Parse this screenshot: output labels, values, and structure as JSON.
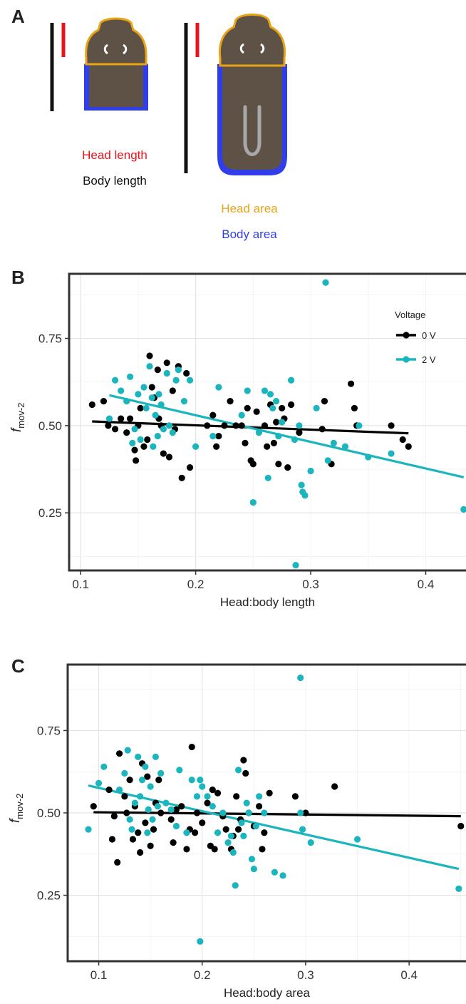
{
  "panels": {
    "a": {
      "letter": "A",
      "head_length_label": "Head length",
      "body_length_label": "Body length",
      "head_area_label": "Head area",
      "body_area_label": "Body area",
      "colors": {
        "head_length": "#e8141b",
        "body_length": "#111111",
        "head_area": "#e8a317",
        "body_area": "#2f3ee8",
        "body_fill": "#5e5146"
      }
    },
    "b": {
      "letter": "B"
    },
    "c": {
      "letter": "C"
    }
  },
  "chart_data": [
    {
      "type": "scatter",
      "panel": "B",
      "xlabel": "Head:body length",
      "ylabel_main": "f",
      "ylabel_sub": "mov-2",
      "xlim": [
        0.09,
        0.435
      ],
      "ylim": [
        0.085,
        0.935
      ],
      "xticks": [
        0.1,
        0.2,
        0.3,
        0.4
      ],
      "xtick_labels": [
        "0.1",
        "0.2",
        "0.3",
        "0.4"
      ],
      "yticks": [
        0.25,
        0.5,
        0.75
      ],
      "ytick_labels": [
        "0.25",
        "0.50",
        "0.75"
      ],
      "grid": true,
      "legend": {
        "title": "Voltage",
        "position": "top-right"
      },
      "series": [
        {
          "name": "0 V",
          "color": "#000000",
          "points": [
            [
              0.11,
              0.56
            ],
            [
              0.12,
              0.57
            ],
            [
              0.124,
              0.5
            ],
            [
              0.13,
              0.49
            ],
            [
              0.135,
              0.52
            ],
            [
              0.14,
              0.48
            ],
            [
              0.143,
              0.52
            ],
            [
              0.147,
              0.43
            ],
            [
              0.148,
              0.4
            ],
            [
              0.15,
              0.5
            ],
            [
              0.152,
              0.55
            ],
            [
              0.155,
              0.44
            ],
            [
              0.158,
              0.46
            ],
            [
              0.16,
              0.7
            ],
            [
              0.162,
              0.61
            ],
            [
              0.164,
              0.58
            ],
            [
              0.167,
              0.66
            ],
            [
              0.168,
              0.52
            ],
            [
              0.17,
              0.5
            ],
            [
              0.172,
              0.42
            ],
            [
              0.175,
              0.68
            ],
            [
              0.177,
              0.41
            ],
            [
              0.18,
              0.6
            ],
            [
              0.182,
              0.49
            ],
            [
              0.185,
              0.67
            ],
            [
              0.188,
              0.35
            ],
            [
              0.192,
              0.65
            ],
            [
              0.195,
              0.38
            ],
            [
              0.21,
              0.5
            ],
            [
              0.215,
              0.53
            ],
            [
              0.218,
              0.44
            ],
            [
              0.22,
              0.47
            ],
            [
              0.225,
              0.5
            ],
            [
              0.23,
              0.57
            ],
            [
              0.235,
              0.5
            ],
            [
              0.24,
              0.5
            ],
            [
              0.243,
              0.45
            ],
            [
              0.245,
              0.55
            ],
            [
              0.248,
              0.4
            ],
            [
              0.25,
              0.39
            ],
            [
              0.253,
              0.54
            ],
            [
              0.26,
              0.5
            ],
            [
              0.262,
              0.44
            ],
            [
              0.265,
              0.56
            ],
            [
              0.268,
              0.45
            ],
            [
              0.27,
              0.51
            ],
            [
              0.272,
              0.39
            ],
            [
              0.275,
              0.55
            ],
            [
              0.277,
              0.52
            ],
            [
              0.28,
              0.38
            ],
            [
              0.283,
              0.56
            ],
            [
              0.29,
              0.48
            ],
            [
              0.31,
              0.49
            ],
            [
              0.312,
              0.57
            ],
            [
              0.318,
              0.39
            ],
            [
              0.335,
              0.62
            ],
            [
              0.338,
              0.55
            ],
            [
              0.34,
              0.5
            ],
            [
              0.37,
              0.5
            ],
            [
              0.38,
              0.46
            ],
            [
              0.385,
              0.44
            ]
          ]
        },
        {
          "name": "2 V",
          "color": "#1ab5bd",
          "points": [
            [
              0.125,
              0.52
            ],
            [
              0.13,
              0.63
            ],
            [
              0.135,
              0.6
            ],
            [
              0.14,
              0.57
            ],
            [
              0.143,
              0.64
            ],
            [
              0.145,
              0.45
            ],
            [
              0.147,
              0.49
            ],
            [
              0.15,
              0.59
            ],
            [
              0.152,
              0.46
            ],
            [
              0.155,
              0.61
            ],
            [
              0.157,
              0.55
            ],
            [
              0.16,
              0.67
            ],
            [
              0.162,
              0.58
            ],
            [
              0.163,
              0.44
            ],
            [
              0.165,
              0.53
            ],
            [
              0.167,
              0.47
            ],
            [
              0.168,
              0.59
            ],
            [
              0.17,
              0.56
            ],
            [
              0.172,
              0.49
            ],
            [
              0.175,
              0.65
            ],
            [
              0.177,
              0.5
            ],
            [
              0.18,
              0.48
            ],
            [
              0.183,
              0.63
            ],
            [
              0.185,
              0.66
            ],
            [
              0.19,
              0.57
            ],
            [
              0.195,
              0.63
            ],
            [
              0.2,
              0.44
            ],
            [
              0.215,
              0.47
            ],
            [
              0.22,
              0.61
            ],
            [
              0.24,
              0.53
            ],
            [
              0.245,
              0.6
            ],
            [
              0.25,
              0.28
            ],
            [
              0.255,
              0.48
            ],
            [
              0.26,
              0.6
            ],
            [
              0.263,
              0.35
            ],
            [
              0.265,
              0.59
            ],
            [
              0.267,
              0.55
            ],
            [
              0.27,
              0.57
            ],
            [
              0.272,
              0.47
            ],
            [
              0.275,
              0.51
            ],
            [
              0.283,
              0.63
            ],
            [
              0.286,
              0.46
            ],
            [
              0.29,
              0.5
            ],
            [
              0.292,
              0.33
            ],
            [
              0.293,
              0.31
            ],
            [
              0.295,
              0.3
            ],
            [
              0.3,
              0.37
            ],
            [
              0.305,
              0.55
            ],
            [
              0.313,
              0.91
            ],
            [
              0.315,
              0.4
            ],
            [
              0.32,
              0.45
            ],
            [
              0.33,
              0.44
            ],
            [
              0.342,
              0.5
            ],
            [
              0.35,
              0.41
            ],
            [
              0.37,
              0.42
            ],
            [
              0.433,
              0.26
            ],
            [
              0.287,
              0.1
            ]
          ]
        }
      ],
      "fits": [
        {
          "series": "0 V",
          "x": [
            0.11,
            0.385
          ],
          "y": [
            0.512,
            0.478
          ]
        },
        {
          "series": "2 V",
          "x": [
            0.125,
            0.433
          ],
          "y": [
            0.587,
            0.352
          ]
        }
      ]
    },
    {
      "type": "scatter",
      "panel": "C",
      "xlabel": "Head:body area",
      "ylabel_main": "f",
      "ylabel_sub": "mov-2",
      "xlim": [
        0.07,
        0.455
      ],
      "ylim": [
        0.05,
        0.95
      ],
      "xticks": [
        0.1,
        0.2,
        0.3,
        0.4
      ],
      "xtick_labels": [
        "0.1",
        "0.2",
        "0.3",
        "0.4"
      ],
      "yticks": [
        0.25,
        0.5,
        0.75
      ],
      "ytick_labels": [
        "0.25",
        "0.50",
        "0.75"
      ],
      "grid": true,
      "series": [
        {
          "name": "0 V",
          "color": "#000000",
          "points": [
            [
              0.095,
              0.52
            ],
            [
              0.11,
              0.57
            ],
            [
              0.113,
              0.42
            ],
            [
              0.115,
              0.49
            ],
            [
              0.118,
              0.35
            ],
            [
              0.12,
              0.68
            ],
            [
              0.125,
              0.55
            ],
            [
              0.127,
              0.5
            ],
            [
              0.13,
              0.6
            ],
            [
              0.133,
              0.42
            ],
            [
              0.135,
              0.52
            ],
            [
              0.138,
              0.44
            ],
            [
              0.14,
              0.38
            ],
            [
              0.142,
              0.65
            ],
            [
              0.145,
              0.47
            ],
            [
              0.147,
              0.61
            ],
            [
              0.15,
              0.4
            ],
            [
              0.153,
              0.45
            ],
            [
              0.155,
              0.53
            ],
            [
              0.158,
              0.6
            ],
            [
              0.16,
              0.5
            ],
            [
              0.17,
              0.48
            ],
            [
              0.172,
              0.41
            ],
            [
              0.175,
              0.51
            ],
            [
              0.18,
              0.52
            ],
            [
              0.185,
              0.39
            ],
            [
              0.188,
              0.45
            ],
            [
              0.19,
              0.7
            ],
            [
              0.193,
              0.44
            ],
            [
              0.195,
              0.5
            ],
            [
              0.2,
              0.47
            ],
            [
              0.205,
              0.53
            ],
            [
              0.208,
              0.4
            ],
            [
              0.21,
              0.57
            ],
            [
              0.212,
              0.39
            ],
            [
              0.215,
              0.56
            ],
            [
              0.22,
              0.49
            ],
            [
              0.223,
              0.45
            ],
            [
              0.228,
              0.39
            ],
            [
              0.23,
              0.43
            ],
            [
              0.233,
              0.55
            ],
            [
              0.235,
              0.45
            ],
            [
              0.237,
              0.48
            ],
            [
              0.24,
              0.66
            ],
            [
              0.242,
              0.62
            ],
            [
              0.245,
              0.5
            ],
            [
              0.25,
              0.46
            ],
            [
              0.255,
              0.52
            ],
            [
              0.258,
              0.39
            ],
            [
              0.26,
              0.44
            ],
            [
              0.265,
              0.56
            ],
            [
              0.29,
              0.55
            ],
            [
              0.3,
              0.5
            ],
            [
              0.328,
              0.58
            ],
            [
              0.45,
              0.46
            ]
          ]
        },
        {
          "name": "2 V",
          "color": "#1ab5bd",
          "points": [
            [
              0.09,
              0.45
            ],
            [
              0.1,
              0.59
            ],
            [
              0.105,
              0.64
            ],
            [
              0.12,
              0.57
            ],
            [
              0.125,
              0.62
            ],
            [
              0.128,
              0.69
            ],
            [
              0.13,
              0.48
            ],
            [
              0.132,
              0.45
            ],
            [
              0.135,
              0.53
            ],
            [
              0.138,
              0.67
            ],
            [
              0.14,
              0.55
            ],
            [
              0.142,
              0.6
            ],
            [
              0.145,
              0.64
            ],
            [
              0.147,
              0.44
            ],
            [
              0.148,
              0.51
            ],
            [
              0.15,
              0.58
            ],
            [
              0.152,
              0.48
            ],
            [
              0.155,
              0.67
            ],
            [
              0.157,
              0.52
            ],
            [
              0.16,
              0.62
            ],
            [
              0.165,
              0.53
            ],
            [
              0.17,
              0.51
            ],
            [
              0.175,
              0.46
            ],
            [
              0.178,
              0.63
            ],
            [
              0.185,
              0.44
            ],
            [
              0.19,
              0.6
            ],
            [
              0.195,
              0.55
            ],
            [
              0.198,
              0.6
            ],
            [
              0.2,
              0.58
            ],
            [
              0.205,
              0.55
            ],
            [
              0.21,
              0.52
            ],
            [
              0.215,
              0.44
            ],
            [
              0.22,
              0.5
            ],
            [
              0.225,
              0.41
            ],
            [
              0.228,
              0.43
            ],
            [
              0.23,
              0.38
            ],
            [
              0.232,
              0.28
            ],
            [
              0.235,
              0.63
            ],
            [
              0.238,
              0.47
            ],
            [
              0.24,
              0.43
            ],
            [
              0.243,
              0.53
            ],
            [
              0.245,
              0.5
            ],
            [
              0.248,
              0.36
            ],
            [
              0.25,
              0.33
            ],
            [
              0.252,
              0.46
            ],
            [
              0.255,
              0.55
            ],
            [
              0.26,
              0.5
            ],
            [
              0.27,
              0.32
            ],
            [
              0.278,
              0.31
            ],
            [
              0.295,
              0.5
            ],
            [
              0.297,
              0.45
            ],
            [
              0.305,
              0.41
            ],
            [
              0.35,
              0.42
            ],
            [
              0.295,
              0.91
            ],
            [
              0.448,
              0.27
            ],
            [
              0.198,
              0.11
            ]
          ]
        }
      ],
      "fits": [
        {
          "series": "0 V",
          "x": [
            0.095,
            0.45
          ],
          "y": [
            0.502,
            0.49
          ]
        },
        {
          "series": "2 V",
          "x": [
            0.09,
            0.448
          ],
          "y": [
            0.583,
            0.33
          ]
        }
      ]
    }
  ]
}
